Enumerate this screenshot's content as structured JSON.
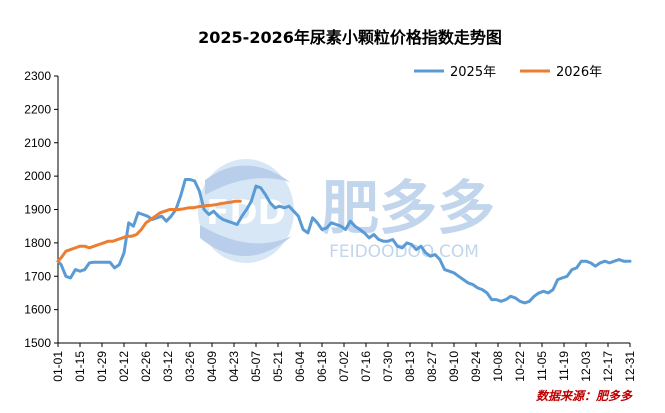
{
  "chart_data": {
    "type": "line",
    "title": "2025-2026年尿素小颗粒价格指数走势图",
    "xlabel": "",
    "ylabel": "",
    "ylim": [
      1500,
      2300
    ],
    "yticks": [
      1500,
      1600,
      1700,
      1800,
      1900,
      2000,
      2100,
      2200,
      2300
    ],
    "x_tick_labels": [
      "01-01",
      "01-15",
      "01-29",
      "02-12",
      "02-26",
      "03-12",
      "03-26",
      "04-09",
      "04-23",
      "05-07",
      "05-21",
      "06-04",
      "06-18",
      "07-02",
      "07-16",
      "07-30",
      "08-13",
      "08-27",
      "09-10",
      "09-24",
      "10-08",
      "10-22",
      "11-05",
      "11-19",
      "12-03",
      "12-17",
      "12-31"
    ],
    "legend_position": "top-right",
    "grid": false,
    "series": [
      {
        "name": "2025年",
        "color": "#5b9bd5",
        "x": [
          "01-01",
          "01-03",
          "01-06",
          "01-09",
          "01-12",
          "01-15",
          "01-18",
          "01-21",
          "01-24",
          "01-27",
          "01-30",
          "02-03",
          "02-06",
          "02-09",
          "02-12",
          "02-15",
          "02-18",
          "02-21",
          "02-24",
          "02-27",
          "03-02",
          "03-05",
          "03-08",
          "03-11",
          "03-14",
          "03-17",
          "03-20",
          "03-23",
          "03-26",
          "03-29",
          "04-01",
          "04-04",
          "04-07",
          "04-10",
          "04-13",
          "04-16",
          "04-19",
          "04-22",
          "04-25",
          "04-28",
          "05-01",
          "05-04",
          "05-07",
          "05-10",
          "05-13",
          "05-16",
          "05-19",
          "05-22",
          "05-25",
          "05-28",
          "05-31",
          "06-03",
          "06-06",
          "06-09",
          "06-12",
          "06-15",
          "06-18",
          "06-21",
          "06-24",
          "06-27",
          "06-30",
          "07-03",
          "07-06",
          "07-09",
          "07-12",
          "07-15",
          "07-18",
          "07-21",
          "07-24",
          "07-27",
          "07-30",
          "08-02",
          "08-05",
          "08-08",
          "08-11",
          "08-14",
          "08-17",
          "08-20",
          "08-23",
          "08-26",
          "08-29",
          "09-01",
          "09-04",
          "09-07",
          "09-10",
          "09-13",
          "09-16",
          "09-19",
          "09-22",
          "09-25",
          "09-28",
          "10-01",
          "10-04",
          "10-07",
          "10-10",
          "10-13",
          "10-16",
          "10-19",
          "10-22",
          "10-25",
          "10-28",
          "10-31",
          "11-03",
          "11-06",
          "11-09",
          "11-12",
          "11-15",
          "11-18",
          "11-21",
          "11-24",
          "11-27",
          "11-30",
          "12-03",
          "12-06",
          "12-09",
          "12-12",
          "12-15",
          "12-18",
          "12-21",
          "12-24",
          "12-27",
          "12-31"
        ],
        "values": [
          1745,
          1735,
          1700,
          1695,
          1720,
          1715,
          1720,
          1740,
          1742,
          1742,
          1742,
          1742,
          1725,
          1735,
          1770,
          1860,
          1850,
          1890,
          1885,
          1880,
          1870,
          1875,
          1880,
          1865,
          1880,
          1900,
          1940,
          1990,
          1990,
          1985,
          1955,
          1900,
          1885,
          1895,
          1880,
          1870,
          1865,
          1860,
          1855,
          1880,
          1900,
          1925,
          1970,
          1965,
          1945,
          1920,
          1905,
          1910,
          1905,
          1910,
          1895,
          1880,
          1840,
          1830,
          1875,
          1860,
          1840,
          1845,
          1860,
          1855,
          1850,
          1840,
          1865,
          1850,
          1840,
          1830,
          1815,
          1825,
          1810,
          1805,
          1805,
          1810,
          1790,
          1785,
          1800,
          1795,
          1780,
          1790,
          1770,
          1760,
          1765,
          1750,
          1720,
          1715,
          1710,
          1700,
          1690,
          1680,
          1675,
          1665,
          1660,
          1650,
          1630,
          1630,
          1625,
          1630,
          1640,
          1635,
          1625,
          1620,
          1625,
          1640,
          1650,
          1655,
          1650,
          1660,
          1690,
          1695,
          1700,
          1720,
          1725,
          1745,
          1745,
          1740,
          1730,
          1740,
          1745,
          1740,
          1745,
          1750,
          1745,
          1745
        ]
      },
      {
        "name": "2026年",
        "color": "#ed7d31",
        "x": [
          "01-01",
          "01-03",
          "01-06",
          "01-09",
          "01-12",
          "01-15",
          "01-18",
          "01-21",
          "01-24",
          "01-27",
          "01-30",
          "02-02",
          "02-05",
          "02-08",
          "02-11",
          "02-14",
          "02-17",
          "02-20",
          "02-23",
          "02-26",
          "03-01",
          "03-04",
          "03-07",
          "03-10",
          "03-13",
          "03-16",
          "03-19",
          "03-22",
          "03-25",
          "03-28",
          "03-31",
          "04-03",
          "04-06",
          "04-09",
          "04-12",
          "04-15",
          "04-18",
          "04-21",
          "04-24",
          "04-27"
        ],
        "values": [
          1745,
          1755,
          1775,
          1780,
          1785,
          1790,
          1790,
          1785,
          1790,
          1795,
          1800,
          1805,
          1805,
          1810,
          1815,
          1820,
          1820,
          1825,
          1840,
          1860,
          1870,
          1880,
          1890,
          1895,
          1900,
          1900,
          1900,
          1902,
          1905,
          1905,
          1908,
          1910,
          1912,
          1913,
          1915,
          1918,
          1920,
          1922,
          1925,
          1925
        ]
      }
    ],
    "watermark": {
      "logo_text": "FDD",
      "brand_cn": "肥多多",
      "brand_en": "FEIDOODOO.COM",
      "color": "#9dc3e6"
    },
    "source": "数据来源：肥多多"
  }
}
